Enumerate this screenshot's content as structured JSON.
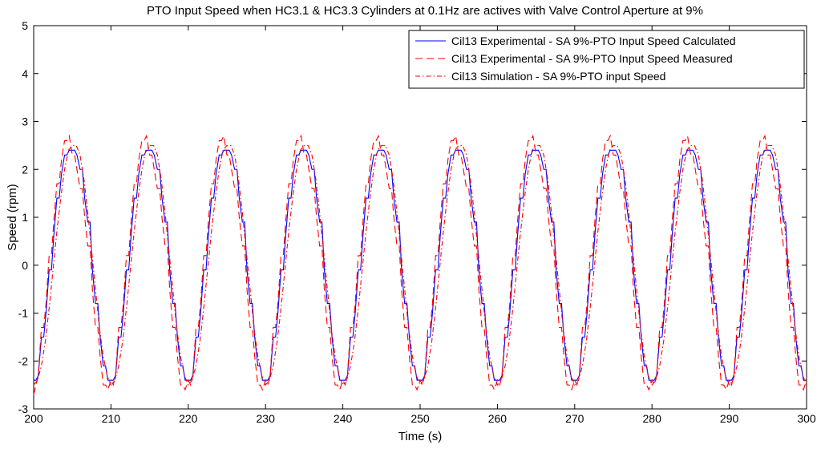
{
  "chart_data": {
    "type": "line",
    "title": "PTO Input Speed when HC3.1 & HC3.3 Cylinders at 0.1Hz are actives with Valve Control Aperture at 9%",
    "xlabel": "Time (s)",
    "ylabel": "Speed (rpm)",
    "xlim": [
      200,
      300
    ],
    "ylim": [
      -3,
      5
    ],
    "xticks": [
      200,
      210,
      220,
      230,
      240,
      250,
      260,
      270,
      280,
      290,
      300
    ],
    "yticks": [
      -3,
      -2,
      -1,
      0,
      1,
      2,
      3,
      4,
      5
    ],
    "grid": false,
    "legend_position": "top-right",
    "waveform": {
      "period_s": 10,
      "peak_rpm": 2.5,
      "trough_rpm": -2.5,
      "first_peak_s": 205.2,
      "first_trough_s": 200.0
    },
    "series": [
      {
        "name": "Cil13 Experimental - SA 9%-PTO Input Speed Calculated",
        "color": "#0000ff",
        "style": "solid",
        "x": [
          200.0,
          200.3,
          200.6,
          201.0,
          201.3,
          201.6,
          202.0,
          202.3,
          202.6,
          203.0,
          203.3,
          203.6,
          204.0,
          204.3,
          204.6,
          205.0,
          205.3,
          205.6,
          206.0,
          206.3,
          206.6,
          207.0,
          207.3,
          207.6,
          208.0,
          208.3,
          208.6,
          209.0,
          209.3,
          209.6,
          210.0
        ],
        "y": [
          -2.4,
          -2.4,
          -2.3,
          -1.5,
          -1.5,
          -1.0,
          -0.1,
          -0.1,
          0.6,
          1.4,
          1.4,
          1.9,
          2.3,
          2.3,
          2.4,
          2.4,
          2.4,
          2.3,
          2.0,
          2.0,
          1.4,
          0.9,
          0.9,
          -0.1,
          -0.8,
          -0.8,
          -1.5,
          -2.1,
          -2.1,
          -2.4,
          -2.4
        ]
      },
      {
        "name": "Cil13 Experimental - SA 9%-PTO Input Speed Measured",
        "color": "#ff0000",
        "style": "dashed",
        "x": [
          200.0,
          200.3,
          200.6,
          201.0,
          201.3,
          201.6,
          202.0,
          202.3,
          202.6,
          203.0,
          203.3,
          203.6,
          204.0,
          204.3,
          204.6,
          205.0,
          205.3,
          205.6,
          206.0,
          206.3,
          206.6,
          207.0,
          207.3,
          207.6,
          208.0,
          208.3,
          208.6,
          209.0,
          209.3,
          209.6,
          210.0
        ],
        "y": [
          -2.7,
          -2.5,
          -2.3,
          -1.3,
          -1.3,
          -0.8,
          0.2,
          0.2,
          0.9,
          1.7,
          1.7,
          2.2,
          2.6,
          2.6,
          2.7,
          2.3,
          2.3,
          2.0,
          1.6,
          1.6,
          1.0,
          0.4,
          0.4,
          -0.5,
          -1.3,
          -1.3,
          -1.9,
          -2.5,
          -2.5,
          -2.6,
          -2.4
        ]
      },
      {
        "name": "Cil13 Simulation - SA 9%-PTO input Speed",
        "color": "#ff0000",
        "style": "dashdot",
        "x": [
          200.0,
          200.5,
          201.0,
          201.5,
          202.0,
          202.5,
          203.0,
          203.5,
          204.0,
          204.5,
          205.0,
          205.5,
          206.0,
          206.5,
          207.0,
          207.5,
          208.0,
          208.5,
          209.0,
          209.5,
          210.0
        ],
        "y": [
          -2.5,
          -2.4,
          -2.1,
          -1.6,
          -0.9,
          -0.1,
          0.7,
          1.4,
          2.0,
          2.4,
          2.5,
          2.5,
          2.3,
          1.8,
          1.1,
          0.3,
          -0.5,
          -1.3,
          -1.9,
          -2.3,
          -2.5
        ]
      }
    ]
  }
}
